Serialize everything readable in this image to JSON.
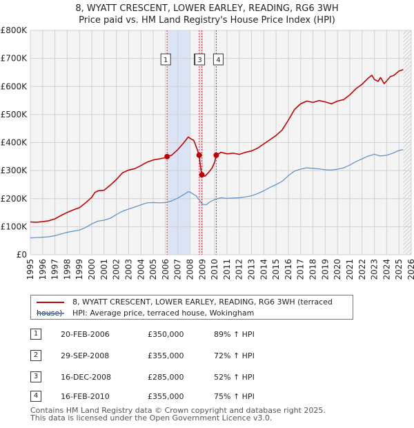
{
  "title": {
    "line1": "8, WYATT CRESCENT, LOWER EARLEY, READING, RG6 3WH",
    "line2": "Price paid vs. HM Land Registry's House Price Index (HPI)"
  },
  "colors": {
    "property": "#c00000",
    "hpi": "#5b8bc6",
    "highlight": "#dbe4f5",
    "marker_line": "#d43030",
    "grid": "#d0d0d0",
    "plot_bg": "#f4f4f4",
    "future_hatch": "#aaaaaa"
  },
  "chart_data": {
    "type": "line",
    "ylim": [
      0,
      800000
    ],
    "xlim": [
      1995,
      2026
    ],
    "y_ticks": [
      {
        "value": 0,
        "label": "£0"
      },
      {
        "value": 100000,
        "label": "£100K"
      },
      {
        "value": 200000,
        "label": "£200K"
      },
      {
        "value": 300000,
        "label": "£300K"
      },
      {
        "value": 400000,
        "label": "£400K"
      },
      {
        "value": 500000,
        "label": "£500K"
      },
      {
        "value": 600000,
        "label": "£600K"
      },
      {
        "value": 700000,
        "label": "£700K"
      },
      {
        "value": 800000,
        "label": "£800K"
      }
    ],
    "x_ticks": [
      "1995",
      "1996",
      "1997",
      "1998",
      "1999",
      "2000",
      "2001",
      "2002",
      "2003",
      "2004",
      "2005",
      "2006",
      "2007",
      "2008",
      "2009",
      "2010",
      "2011",
      "2012",
      "2013",
      "2014",
      "2015",
      "2016",
      "2017",
      "2018",
      "2019",
      "2020",
      "2021",
      "2022",
      "2023",
      "2024",
      "2025",
      "2026"
    ],
    "x_tick_values": [
      1995,
      1996,
      1997,
      1998,
      1999,
      2000,
      2001,
      2002,
      2003,
      2004,
      2005,
      2006,
      2007,
      2008,
      2009,
      2010,
      2011,
      2012,
      2013,
      2014,
      2015,
      2016,
      2017,
      2018,
      2019,
      2020,
      2021,
      2022,
      2023,
      2024,
      2025,
      2026
    ],
    "highlight_ranges": [
      [
        2006.13,
        2008.0
      ],
      [
        2008.74,
        2008.96
      ]
    ],
    "data_end": 2025.35,
    "series": [
      {
        "name": "8, WYATT CRESCENT, LOWER EARLEY, READING, RG6 3WH (terraced house)",
        "color_key": "property",
        "points": [
          [
            1995.0,
            117000
          ],
          [
            1995.5,
            116000
          ],
          [
            1996.0,
            118000
          ],
          [
            1996.5,
            121000
          ],
          [
            1997.0,
            128000
          ],
          [
            1997.5,
            140000
          ],
          [
            1998.0,
            151000
          ],
          [
            1998.5,
            160000
          ],
          [
            1999.0,
            168000
          ],
          [
            1999.5,
            185000
          ],
          [
            2000.0,
            205000
          ],
          [
            2000.25,
            222000
          ],
          [
            2000.5,
            228000
          ],
          [
            2001.0,
            230000
          ],
          [
            2001.5,
            248000
          ],
          [
            2002.0,
            268000
          ],
          [
            2002.5,
            292000
          ],
          [
            2003.0,
            302000
          ],
          [
            2003.5,
            307000
          ],
          [
            2004.0,
            318000
          ],
          [
            2004.5,
            330000
          ],
          [
            2005.0,
            338000
          ],
          [
            2005.5,
            342000
          ],
          [
            2006.0,
            346000
          ],
          [
            2006.13,
            350000
          ],
          [
            2006.5,
            355000
          ],
          [
            2007.0,
            375000
          ],
          [
            2007.5,
            400000
          ],
          [
            2007.85,
            420000
          ],
          [
            2008.0,
            415000
          ],
          [
            2008.3,
            408000
          ],
          [
            2008.5,
            385000
          ],
          [
            2008.74,
            355000
          ],
          [
            2008.8,
            330000
          ],
          [
            2008.9,
            300000
          ],
          [
            2008.96,
            285000
          ],
          [
            2009.2,
            280000
          ],
          [
            2009.5,
            293000
          ],
          [
            2009.8,
            310000
          ],
          [
            2010.0,
            330000
          ],
          [
            2010.13,
            355000
          ],
          [
            2010.5,
            365000
          ],
          [
            2011.0,
            360000
          ],
          [
            2011.5,
            362000
          ],
          [
            2012.0,
            358000
          ],
          [
            2012.5,
            365000
          ],
          [
            2013.0,
            370000
          ],
          [
            2013.5,
            380000
          ],
          [
            2014.0,
            395000
          ],
          [
            2014.5,
            410000
          ],
          [
            2015.0,
            425000
          ],
          [
            2015.5,
            445000
          ],
          [
            2016.0,
            480000
          ],
          [
            2016.5,
            518000
          ],
          [
            2017.0,
            538000
          ],
          [
            2017.5,
            548000
          ],
          [
            2018.0,
            543000
          ],
          [
            2018.5,
            550000
          ],
          [
            2019.0,
            545000
          ],
          [
            2019.5,
            538000
          ],
          [
            2020.0,
            548000
          ],
          [
            2020.5,
            553000
          ],
          [
            2021.0,
            570000
          ],
          [
            2021.5,
            592000
          ],
          [
            2022.0,
            608000
          ],
          [
            2022.5,
            630000
          ],
          [
            2022.8,
            640000
          ],
          [
            2023.0,
            625000
          ],
          [
            2023.3,
            618000
          ],
          [
            2023.5,
            632000
          ],
          [
            2023.8,
            610000
          ],
          [
            2024.0,
            620000
          ],
          [
            2024.3,
            635000
          ],
          [
            2024.6,
            640000
          ],
          [
            2025.0,
            655000
          ],
          [
            2025.35,
            660000
          ]
        ]
      },
      {
        "name": "HPI: Average price, terraced house, Wokingham",
        "color_key": "hpi",
        "points": [
          [
            1995.0,
            60000
          ],
          [
            1995.5,
            61000
          ],
          [
            1996.0,
            62500
          ],
          [
            1996.5,
            64000
          ],
          [
            1997.0,
            68000
          ],
          [
            1997.5,
            74000
          ],
          [
            1998.0,
            80000
          ],
          [
            1998.5,
            84000
          ],
          [
            1999.0,
            88000
          ],
          [
            1999.5,
            97000
          ],
          [
            2000.0,
            110000
          ],
          [
            2000.5,
            120000
          ],
          [
            2001.0,
            123000
          ],
          [
            2001.5,
            130000
          ],
          [
            2002.0,
            143000
          ],
          [
            2002.5,
            155000
          ],
          [
            2003.0,
            163000
          ],
          [
            2003.5,
            170000
          ],
          [
            2004.0,
            178000
          ],
          [
            2004.5,
            185000
          ],
          [
            2005.0,
            186000
          ],
          [
            2005.5,
            185000
          ],
          [
            2006.0,
            186000
          ],
          [
            2006.5,
            192000
          ],
          [
            2007.0,
            202000
          ],
          [
            2007.5,
            215000
          ],
          [
            2007.85,
            225000
          ],
          [
            2008.0,
            223000
          ],
          [
            2008.5,
            210000
          ],
          [
            2009.0,
            180000
          ],
          [
            2009.3,
            178000
          ],
          [
            2009.6,
            188000
          ],
          [
            2010.0,
            197000
          ],
          [
            2010.5,
            203000
          ],
          [
            2011.0,
            201000
          ],
          [
            2011.5,
            202000
          ],
          [
            2012.0,
            203000
          ],
          [
            2012.5,
            206000
          ],
          [
            2013.0,
            210000
          ],
          [
            2013.5,
            218000
          ],
          [
            2014.0,
            228000
          ],
          [
            2014.5,
            240000
          ],
          [
            2015.0,
            250000
          ],
          [
            2015.5,
            262000
          ],
          [
            2016.0,
            282000
          ],
          [
            2016.5,
            298000
          ],
          [
            2017.0,
            305000
          ],
          [
            2017.5,
            310000
          ],
          [
            2018.0,
            308000
          ],
          [
            2018.5,
            306000
          ],
          [
            2019.0,
            303000
          ],
          [
            2019.5,
            302000
          ],
          [
            2020.0,
            305000
          ],
          [
            2020.5,
            310000
          ],
          [
            2021.0,
            320000
          ],
          [
            2021.5,
            332000
          ],
          [
            2022.0,
            342000
          ],
          [
            2022.5,
            352000
          ],
          [
            2023.0,
            358000
          ],
          [
            2023.5,
            352000
          ],
          [
            2024.0,
            355000
          ],
          [
            2024.5,
            362000
          ],
          [
            2025.0,
            372000
          ],
          [
            2025.35,
            375000
          ]
        ]
      }
    ],
    "transactions": [
      {
        "num": "1",
        "x": 2006.13,
        "value": 350000,
        "date": "20-FEB-2006",
        "price": "£350,000",
        "hpi": "89% ↑ HPI"
      },
      {
        "num": "2",
        "x": 2008.74,
        "value": 355000,
        "date": "29-SEP-2008",
        "price": "£355,000",
        "hpi": "72% ↑ HPI"
      },
      {
        "num": "3",
        "x": 2008.96,
        "value": 285000,
        "date": "16-DEC-2008",
        "price": "£285,000",
        "hpi": "52% ↑ HPI"
      },
      {
        "num": "4",
        "x": 2010.13,
        "value": 355000,
        "date": "16-FEB-2010",
        "price": "£355,000",
        "hpi": "75% ↑ HPI"
      }
    ]
  },
  "legend": {
    "property_label": "8, WYATT CRESCENT, LOWER EARLEY, READING, RG6 3WH (terraced house)",
    "hpi_label": "HPI: Average price, terraced house, Wokingham"
  },
  "transactions_table": [
    {
      "num": "1",
      "date": "20-FEB-2006",
      "price": "£350,000",
      "hpi": "89% ↑ HPI"
    },
    {
      "num": "2",
      "date": "29-SEP-2008",
      "price": "£355,000",
      "hpi": "72% ↑ HPI"
    },
    {
      "num": "3",
      "date": "16-DEC-2008",
      "price": "£285,000",
      "hpi": "52% ↑ HPI"
    },
    {
      "num": "4",
      "date": "16-FEB-2010",
      "price": "£355,000",
      "hpi": "75% ↑ HPI"
    }
  ],
  "footer": {
    "line1": "Contains HM Land Registry data © Crown copyright and database right 2025.",
    "line2": "This data is licensed under the Open Government Licence v3.0."
  }
}
